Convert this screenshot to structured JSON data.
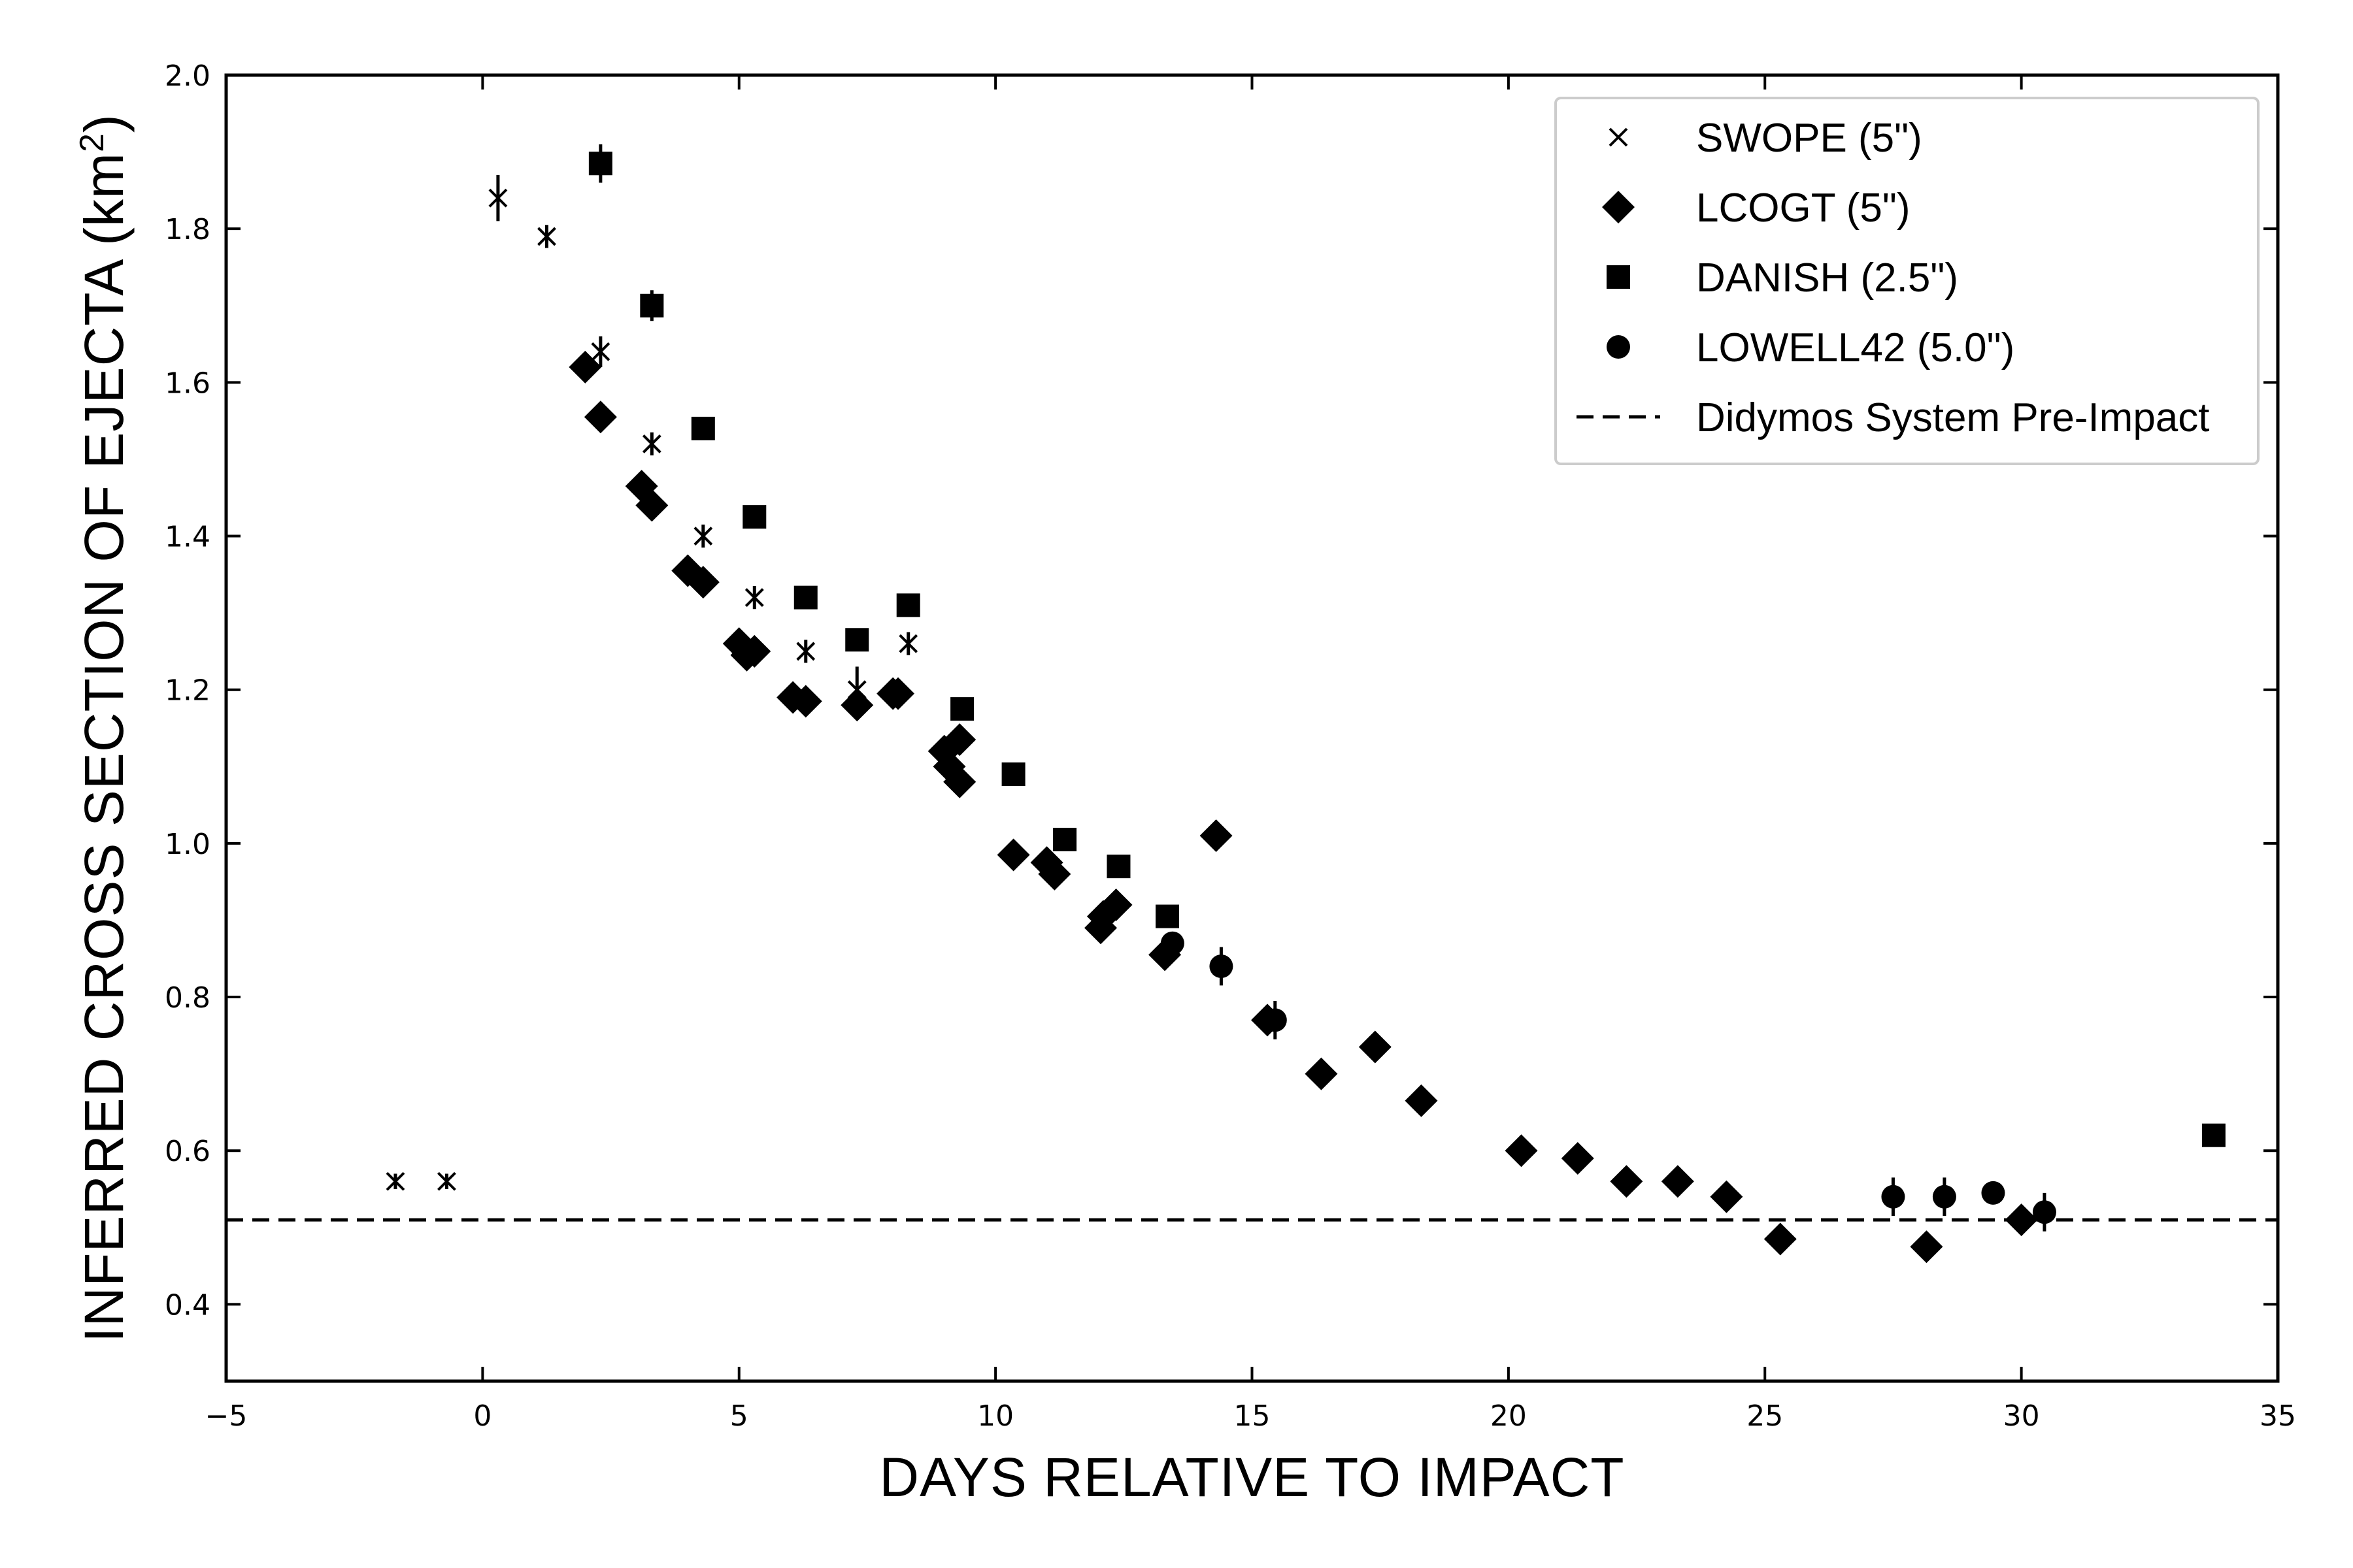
{
  "chart_data": {
    "type": "scatter",
    "title": "",
    "xlabel": "DAYS RELATIVE TO IMPACT",
    "ylabel_main": "INFERRED CROSS SECTION OF EJECTA (km",
    "ylabel_sup": "2",
    "ylabel_end": ")",
    "xlim": [
      -5,
      35
    ],
    "ylim": [
      0.3,
      2.0
    ],
    "xticks": [
      -5,
      0,
      5,
      10,
      15,
      20,
      25,
      30,
      35
    ],
    "xtick_labels": [
      "−5",
      "0",
      "5",
      "10",
      "15",
      "20",
      "25",
      "30",
      "35"
    ],
    "yticks": [
      0.4,
      0.6,
      0.8,
      1.0,
      1.2,
      1.4,
      1.6,
      1.8,
      2.0
    ],
    "ytick_labels": [
      "0.4",
      "0.6",
      "0.8",
      "1.0",
      "1.2",
      "1.4",
      "1.6",
      "1.8",
      "2.0"
    ],
    "legend_position": "top-right",
    "reference_line": {
      "name": "Didymos System Pre-Impact",
      "y": 0.51,
      "style": "dashed"
    },
    "series": [
      {
        "name": "SWOPE (5\")",
        "marker": "x",
        "points": [
          {
            "x": -1.7,
            "y": 0.56,
            "err": 0.01
          },
          {
            "x": -0.7,
            "y": 0.56,
            "err": 0.01
          },
          {
            "x": 0.3,
            "y": 1.84,
            "err": 0.03
          },
          {
            "x": 1.25,
            "y": 1.79,
            "err": 0.015
          },
          {
            "x": 2.3,
            "y": 1.64,
            "err": 0.02
          },
          {
            "x": 3.3,
            "y": 1.52,
            "err": 0.015
          },
          {
            "x": 4.3,
            "y": 1.4,
            "err": 0.015
          },
          {
            "x": 5.3,
            "y": 1.32,
            "err": 0.015
          },
          {
            "x": 6.3,
            "y": 1.25,
            "err": 0.015
          },
          {
            "x": 7.3,
            "y": 1.2,
            "err": 0.03
          },
          {
            "x": 8.3,
            "y": 1.26,
            "err": 0.015
          }
        ]
      },
      {
        "name": "LCOGT (5\")",
        "marker": "diamond",
        "points": [
          {
            "x": 2.0,
            "y": 1.62
          },
          {
            "x": 2.3,
            "y": 1.555
          },
          {
            "x": 3.1,
            "y": 1.465
          },
          {
            "x": 3.3,
            "y": 1.44
          },
          {
            "x": 4.0,
            "y": 1.355
          },
          {
            "x": 4.3,
            "y": 1.34
          },
          {
            "x": 5.0,
            "y": 1.26
          },
          {
            "x": 5.15,
            "y": 1.245
          },
          {
            "x": 5.3,
            "y": 1.25
          },
          {
            "x": 6.05,
            "y": 1.19
          },
          {
            "x": 6.3,
            "y": 1.185
          },
          {
            "x": 7.3,
            "y": 1.18
          },
          {
            "x": 8.0,
            "y": 1.195
          },
          {
            "x": 8.1,
            "y": 1.195
          },
          {
            "x": 9.0,
            "y": 1.12
          },
          {
            "x": 9.1,
            "y": 1.1
          },
          {
            "x": 9.3,
            "y": 1.08
          },
          {
            "x": 9.3,
            "y": 1.135
          },
          {
            "x": 10.35,
            "y": 0.985
          },
          {
            "x": 11.0,
            "y": 0.975
          },
          {
            "x": 11.15,
            "y": 0.96
          },
          {
            "x": 12.05,
            "y": 0.89
          },
          {
            "x": 12.1,
            "y": 0.905
          },
          {
            "x": 12.35,
            "y": 0.92
          },
          {
            "x": 13.3,
            "y": 0.855
          },
          {
            "x": 14.3,
            "y": 1.01
          },
          {
            "x": 15.3,
            "y": 0.77
          },
          {
            "x": 16.35,
            "y": 0.7
          },
          {
            "x": 17.4,
            "y": 0.735
          },
          {
            "x": 18.3,
            "y": 0.665
          },
          {
            "x": 20.25,
            "y": 0.6
          },
          {
            "x": 21.35,
            "y": 0.59
          },
          {
            "x": 22.3,
            "y": 0.56
          },
          {
            "x": 23.3,
            "y": 0.56
          },
          {
            "x": 24.25,
            "y": 0.54
          },
          {
            "x": 25.3,
            "y": 0.485
          },
          {
            "x": 28.15,
            "y": 0.475
          },
          {
            "x": 30.0,
            "y": 0.51
          }
        ]
      },
      {
        "name": "DANISH (2.5\")",
        "marker": "square",
        "points": [
          {
            "x": 2.3,
            "y": 1.885,
            "err": 0.025
          },
          {
            "x": 3.3,
            "y": 1.7,
            "err": 0.02
          },
          {
            "x": 4.3,
            "y": 1.54,
            "err": 0.015
          },
          {
            "x": 5.3,
            "y": 1.425,
            "err": 0.015
          },
          {
            "x": 6.3,
            "y": 1.32,
            "err": 0.015
          },
          {
            "x": 7.3,
            "y": 1.265,
            "err": 0.01
          },
          {
            "x": 8.3,
            "y": 1.31,
            "err": 0.01
          },
          {
            "x": 9.35,
            "y": 1.175,
            "err": 0.01
          },
          {
            "x": 10.35,
            "y": 1.09,
            "err": 0.01
          },
          {
            "x": 11.35,
            "y": 1.005,
            "err": 0.01
          },
          {
            "x": 12.4,
            "y": 0.97,
            "err": 0.01
          },
          {
            "x": 13.35,
            "y": 0.905,
            "err": 0.01
          },
          {
            "x": 33.75,
            "y": 0.62,
            "err": 0.01
          }
        ]
      },
      {
        "name": "LOWELL42 (5.0\")",
        "marker": "circle",
        "points": [
          {
            "x": 13.45,
            "y": 0.87,
            "err": 0.015
          },
          {
            "x": 14.4,
            "y": 0.84,
            "err": 0.025
          },
          {
            "x": 15.45,
            "y": 0.77,
            "err": 0.025
          },
          {
            "x": 27.5,
            "y": 0.54,
            "err": 0.025
          },
          {
            "x": 28.5,
            "y": 0.54,
            "err": 0.025
          },
          {
            "x": 29.45,
            "y": 0.545,
            "err": 0.015
          },
          {
            "x": 30.45,
            "y": 0.52,
            "err": 0.025
          }
        ]
      }
    ]
  }
}
